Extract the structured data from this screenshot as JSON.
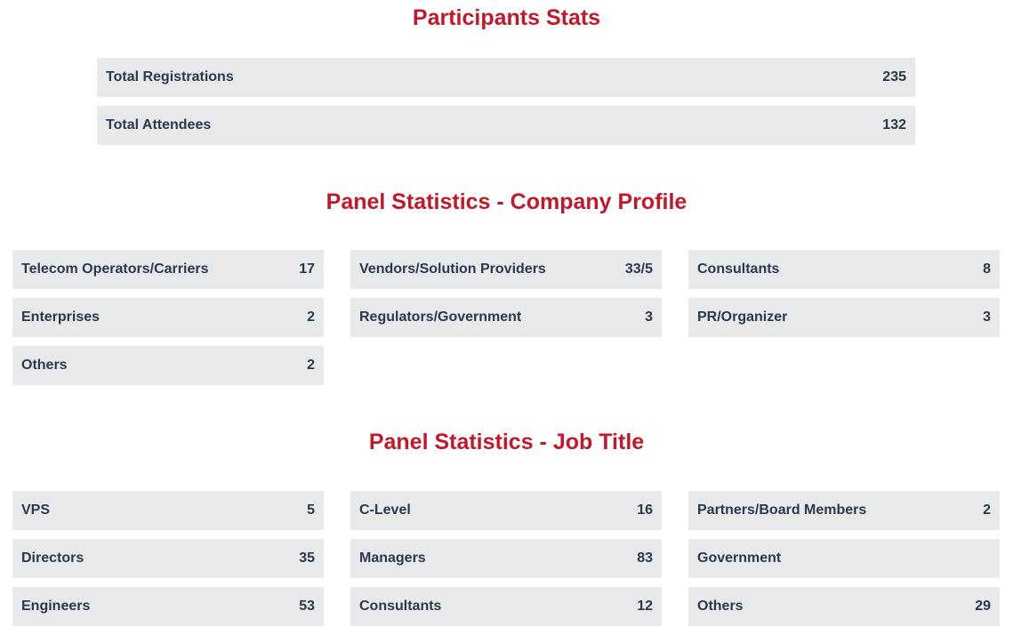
{
  "participants": {
    "title": "Participants Stats",
    "rows": [
      {
        "label": "Total Registrations",
        "value": "235"
      },
      {
        "label": "Total Attendees",
        "value": "132"
      }
    ]
  },
  "company_profile": {
    "title": "Panel Statistics - Company Profile",
    "items": [
      {
        "label": "Telecom Operators/Carriers",
        "value": "17"
      },
      {
        "label": "Vendors/Solution Providers",
        "value": "33/5"
      },
      {
        "label": "Consultants",
        "value": "8"
      },
      {
        "label": "Enterprises",
        "value": "2"
      },
      {
        "label": "Regulators/Government",
        "value": "3"
      },
      {
        "label": "PR/Organizer",
        "value": "3"
      },
      {
        "label": "Others",
        "value": "2"
      }
    ]
  },
  "job_title": {
    "title": "Panel Statistics - Job Title",
    "items": [
      {
        "label": "VPS",
        "value": "5"
      },
      {
        "label": "C-Level",
        "value": "16"
      },
      {
        "label": "Partners/Board Members",
        "value": "2"
      },
      {
        "label": "Directors",
        "value": "35"
      },
      {
        "label": "Managers",
        "value": "83"
      },
      {
        "label": "Government",
        "value": ""
      },
      {
        "label": "Engineers",
        "value": "53"
      },
      {
        "label": "Consultants",
        "value": "12"
      },
      {
        "label": "Others",
        "value": "29"
      }
    ]
  },
  "colors": {
    "heading": "#c01a2a",
    "card_background": "#e8e9eb",
    "text": "#2b3a4a"
  }
}
